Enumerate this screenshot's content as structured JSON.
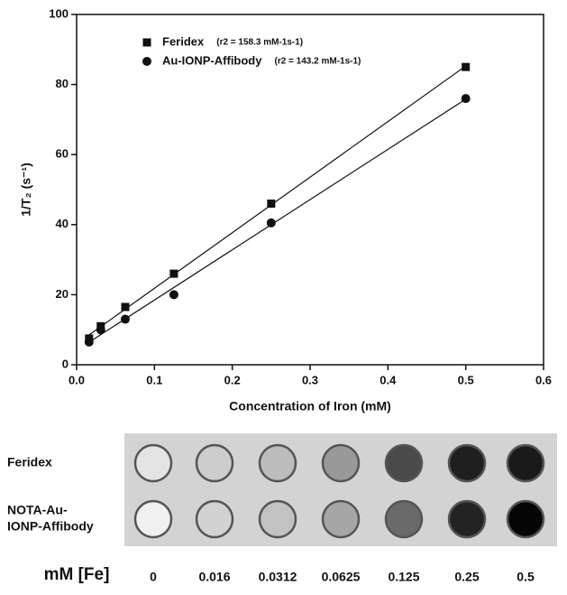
{
  "chart_data": {
    "type": "scatter",
    "xlabel": "Concentration of Iron (mM)",
    "ylabel": "1/T₂ (s⁻¹)",
    "xlim": [
      0,
      0.6
    ],
    "xticks": [
      {
        "value": 0,
        "label": "0.0"
      },
      0.1,
      0.2,
      0.3,
      0.4,
      0.5,
      0.6
    ],
    "ylim": [
      0,
      100
    ],
    "yticks": [
      0,
      20,
      40,
      60,
      80,
      100
    ],
    "legend": "top-left",
    "series": [
      {
        "name": "Feridex",
        "note": "(r2 = 158.3 mM-1s-1)",
        "marker": "square",
        "color": "#111111",
        "x": [
          0.016,
          0.031,
          0.0625,
          0.125,
          0.25,
          0.5
        ],
        "values": [
          7.5,
          11,
          16.5,
          26,
          46,
          85
        ]
      },
      {
        "name": "Au-IONP-Affibody",
        "note": "(r2 = 143.2 mM-1s-1)",
        "marker": "circle",
        "color": "#111111",
        "x": [
          0.016,
          0.031,
          0.0625,
          0.125,
          0.25,
          0.5
        ],
        "values": [
          6.5,
          10,
          13,
          20,
          40.5,
          76
        ]
      }
    ]
  },
  "phantom": {
    "rows": [
      {
        "label": [
          "Feridex"
        ],
        "fills": [
          "#e4e4e4",
          "#cdcdcd",
          "#bcbcbc",
          "#999999",
          "#4a4a4a",
          "#1f1f1f",
          "#1a1a1a"
        ]
      },
      {
        "label": [
          "NOTA-Au-",
          "IONP-Affibody"
        ],
        "fills": [
          "#f0f0f0",
          "#d2d2d2",
          "#c2c2c2",
          "#a6a6a6",
          "#6a6a6a",
          "#232323",
          "#050505"
        ]
      }
    ],
    "axis_label": "mM [Fe]",
    "concentrations": [
      "0",
      "0.016",
      "0.0312",
      "0.0625",
      "0.125",
      "0.25",
      "0.5"
    ]
  }
}
